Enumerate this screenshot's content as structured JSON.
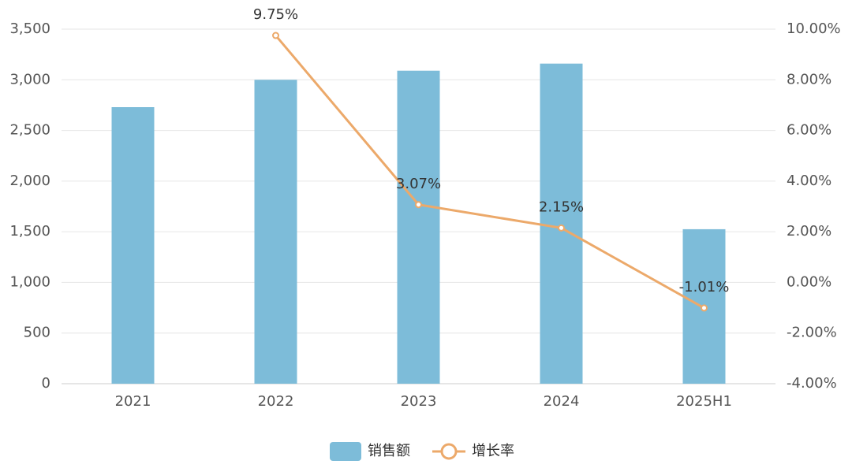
{
  "chart_data": {
    "type": "bar-line",
    "categories": [
      "2021",
      "2022",
      "2023",
      "2024",
      "2025H1"
    ],
    "series": [
      {
        "name": "销售额",
        "type": "bar",
        "color": "#7dbcd9",
        "values": [
          2730,
          3000,
          3090,
          3160,
          1525
        ]
      },
      {
        "name": "增长率",
        "type": "line",
        "axis": "y2",
        "color": "#eca96a",
        "values": [
          null,
          9.75,
          3.07,
          2.15,
          -1.01
        ],
        "value_labels": [
          null,
          "9.75%",
          "3.07%",
          "2.15%",
          "-1.01%"
        ]
      }
    ],
    "ylim": [
      0,
      3500
    ],
    "yticks": [
      0,
      500,
      {
        "value": 1000,
        "label": "1,000"
      },
      {
        "value": 1500,
        "label": "1,500"
      },
      {
        "value": 2000,
        "label": "2,000"
      },
      {
        "value": 2500,
        "label": "2,500"
      },
      {
        "value": 3000,
        "label": "3,000"
      },
      {
        "value": 3500,
        "label": "3,500"
      }
    ],
    "y2lim": [
      -4,
      10
    ],
    "y2ticks": [
      {
        "value": -4,
        "label": "-4.00%"
      },
      {
        "value": -2,
        "label": "-2.00%"
      },
      {
        "value": 0,
        "label": "0.00%"
      },
      {
        "value": 2,
        "label": "2.00%"
      },
      {
        "value": 4,
        "label": "4.00%"
      },
      {
        "value": 6,
        "label": "6.00%"
      },
      {
        "value": 8,
        "label": "8.00%"
      },
      {
        "value": 10,
        "label": "10.00%"
      }
    ],
    "grid": true,
    "legend": "bottom"
  }
}
